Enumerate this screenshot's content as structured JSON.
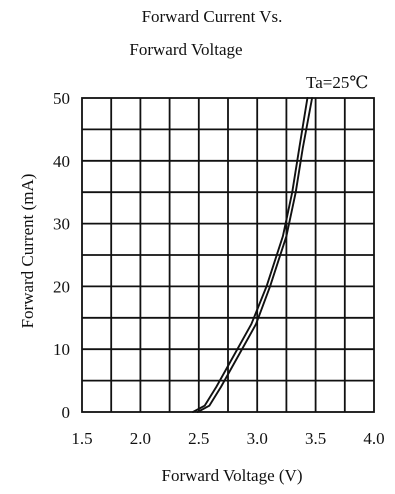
{
  "chart_data": {
    "type": "line",
    "title_lines": [
      "Forward Current Vs.",
      "Forward Voltage"
    ],
    "xlabel": "Forward Voltage (V)",
    "ylabel": "Forward   Current (mA)",
    "annotation": "Ta=25℃",
    "xlim": [
      1.5,
      4.0
    ],
    "ylim": [
      0,
      50
    ],
    "x_ticks": [
      "1.5",
      "2.0",
      "2.5",
      "3.0",
      "3.5",
      "4.0"
    ],
    "y_ticks": [
      "0",
      "10",
      "20",
      "30",
      "40",
      "50"
    ],
    "grid": true,
    "series": [
      {
        "x": [
          2.45,
          2.55,
          2.65,
          2.8,
          2.95,
          3.08,
          3.22,
          3.3,
          3.36,
          3.43
        ],
        "y": [
          0,
          1,
          4,
          9,
          14,
          20,
          28,
          35,
          42,
          50
        ]
      },
      {
        "x": [
          2.49,
          2.59,
          2.69,
          2.84,
          2.99,
          3.11,
          3.25,
          3.33,
          3.39,
          3.47
        ],
        "y": [
          0,
          1,
          4,
          9,
          14,
          20,
          28,
          35,
          42,
          50
        ]
      }
    ],
    "colors": {
      "axis": "#111111",
      "grid": "#111111",
      "series": "#111111",
      "background": "#ffffff"
    }
  }
}
